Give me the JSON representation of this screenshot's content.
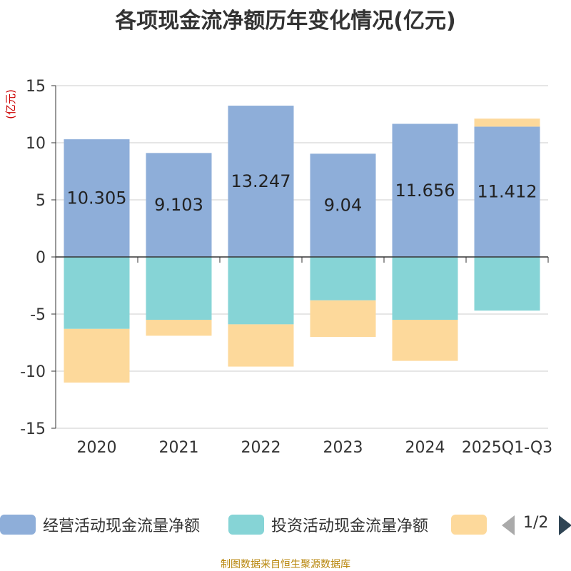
{
  "chart_data": {
    "type": "bar",
    "stacked": true,
    "title": "各项现金流净额历年变化情况(亿元)",
    "ylabel": "(亿元)",
    "xlabel": "",
    "ylim": [
      -15,
      15
    ],
    "yticks": [
      15,
      10,
      5,
      0,
      -5,
      -10,
      -15
    ],
    "categories": [
      "2020",
      "2021",
      "2022",
      "2023",
      "2024",
      "2025Q1-Q3"
    ],
    "series": [
      {
        "name": "经营活动现金流量净额",
        "color": "#8eaed9",
        "values": [
          10.305,
          9.103,
          13.247,
          9.04,
          11.656,
          11.412
        ],
        "labels": [
          "10.305",
          "9.103",
          "13.247",
          "9.04",
          "11.656",
          "11.412"
        ]
      },
      {
        "name": "投资活动现金流量净额",
        "color": "#86d4d6",
        "values": [
          -6.3,
          -5.5,
          -5.9,
          -3.8,
          -5.5,
          -4.7
        ]
      },
      {
        "name": "",
        "color": "#fdd99b",
        "values": [
          -4.7,
          -1.4,
          -3.7,
          -3.2,
          -3.6,
          0.7
        ]
      }
    ],
    "legend_position": "bottom",
    "legend_page": "1/2",
    "source": "制图数据来自恒生聚源数据库"
  }
}
